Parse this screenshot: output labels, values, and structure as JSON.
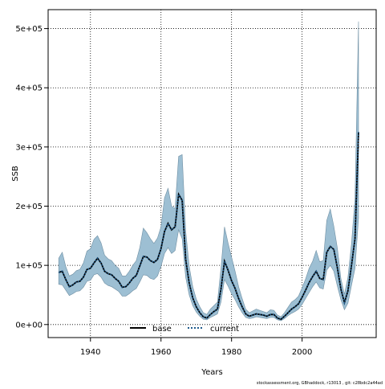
{
  "chart_data": {
    "type": "line",
    "xlabel": "Years",
    "ylabel": "SSB",
    "xlim": [
      1928,
      2021
    ],
    "ylim": [
      -22000,
      532000
    ],
    "x_ticks": [
      1940,
      1960,
      1980,
      2000
    ],
    "x_tick_labels": [
      "1940",
      "1960",
      "1980",
      "2000"
    ],
    "y_ticks": [
      0,
      100000,
      200000,
      300000,
      400000,
      500000
    ],
    "y_tick_labels": [
      "0e+00",
      "1e+05",
      "2e+05",
      "3e+05",
      "4e+05",
      "5e+05"
    ],
    "grid": true,
    "grid_style": "dotted",
    "legend_position": "bottom-center",
    "x": [
      1931,
      1932,
      1933,
      1934,
      1935,
      1936,
      1937,
      1938,
      1939,
      1940,
      1941,
      1942,
      1943,
      1944,
      1945,
      1946,
      1947,
      1948,
      1949,
      1950,
      1951,
      1952,
      1953,
      1954,
      1955,
      1956,
      1957,
      1958,
      1959,
      1960,
      1961,
      1962,
      1963,
      1964,
      1965,
      1966,
      1967,
      1968,
      1969,
      1970,
      1971,
      1972,
      1973,
      1974,
      1975,
      1976,
      1977,
      1978,
      1979,
      1980,
      1981,
      1982,
      1983,
      1984,
      1985,
      1986,
      1987,
      1988,
      1989,
      1990,
      1991,
      1992,
      1993,
      1994,
      1995,
      1996,
      1997,
      1998,
      1999,
      2000,
      2001,
      2002,
      2003,
      2004,
      2005,
      2006,
      2007,
      2008,
      2009,
      2010,
      2011,
      2012,
      2013,
      2014,
      2015,
      2016
    ],
    "series": [
      {
        "name": "base",
        "color": "#000000",
        "line_style": "solid",
        "values": [
          88000,
          90000,
          76000,
          64000,
          67000,
          72000,
          73000,
          80000,
          93000,
          95000,
          104000,
          112000,
          104000,
          90000,
          86000,
          84000,
          78000,
          73000,
          63000,
          64000,
          70000,
          78000,
          83000,
          99000,
          115000,
          114000,
          108000,
          105000,
          110000,
          128000,
          157000,
          171000,
          160000,
          165000,
          220000,
          210000,
          110000,
          70000,
          45000,
          30000,
          20000,
          13000,
          11000,
          17000,
          22000,
          26000,
          60000,
          107000,
          92000,
          74000,
          61000,
          44000,
          30000,
          18000,
          14000,
          16000,
          18000,
          17000,
          16000,
          14000,
          17000,
          17000,
          11000,
          9000,
          14000,
          20000,
          26000,
          30000,
          35000,
          46000,
          58000,
          71000,
          81000,
          90000,
          78000,
          76000,
          122000,
          132000,
          127000,
          96000,
          60000,
          37000,
          57000,
          100000,
          145000,
          325000
        ]
      },
      {
        "name": "current",
        "color": "#1f5a8c",
        "line_style": "dotted",
        "values": [
          88000,
          90000,
          76000,
          64000,
          67000,
          72000,
          73000,
          80000,
          93000,
          95000,
          104000,
          112000,
          104000,
          90000,
          86000,
          84000,
          78000,
          73000,
          63000,
          64000,
          70000,
          78000,
          83000,
          99000,
          115000,
          114000,
          108000,
          105000,
          110000,
          128000,
          157000,
          171000,
          160000,
          165000,
          220000,
          210000,
          110000,
          70000,
          45000,
          30000,
          20000,
          13000,
          11000,
          17000,
          22000,
          26000,
          60000,
          107000,
          92000,
          74000,
          61000,
          44000,
          30000,
          18000,
          14000,
          16000,
          18000,
          17000,
          16000,
          14000,
          17000,
          17000,
          11000,
          9000,
          14000,
          20000,
          26000,
          30000,
          35000,
          46000,
          58000,
          71000,
          81000,
          90000,
          78000,
          76000,
          122000,
          132000,
          127000,
          96000,
          60000,
          37000,
          57000,
          100000,
          145000,
          325000
        ]
      }
    ],
    "band": {
      "color": "#9dbfd3",
      "lower": [
        68000,
        67000,
        58000,
        49000,
        52000,
        56000,
        57000,
        63000,
        73000,
        75000,
        84000,
        86000,
        80000,
        70000,
        66000,
        64000,
        60000,
        56000,
        48000,
        48000,
        52000,
        57000,
        61000,
        72000,
        84000,
        83000,
        78000,
        76000,
        82000,
        98000,
        120000,
        130000,
        120000,
        125000,
        160000,
        145000,
        80000,
        50000,
        32000,
        21000,
        14000,
        9000,
        8000,
        12000,
        15000,
        18000,
        38000,
        76000,
        65000,
        52000,
        42000,
        30000,
        20000,
        12000,
        10000,
        11000,
        13000,
        12000,
        11000,
        10000,
        12000,
        12000,
        8000,
        6500,
        10000,
        15000,
        19000,
        22000,
        26000,
        34000,
        44000,
        54000,
        64000,
        72000,
        62000,
        60000,
        92000,
        100000,
        90000,
        65000,
        42000,
        25000,
        36000,
        66000,
        95000,
        180000
      ],
      "upper": [
        112000,
        122000,
        98000,
        82000,
        85000,
        91000,
        93000,
        104000,
        124000,
        128000,
        144000,
        150000,
        138000,
        117000,
        111000,
        108000,
        100000,
        95000,
        82000,
        82000,
        90000,
        100000,
        108000,
        130000,
        163000,
        155000,
        145000,
        137000,
        146000,
        165000,
        214000,
        230000,
        200000,
        196000,
        284000,
        287000,
        158000,
        98000,
        64000,
        43000,
        30000,
        20000,
        17000,
        26000,
        32000,
        38000,
        95000,
        165000,
        138000,
        114000,
        90000,
        64000,
        44000,
        26000,
        20000,
        23000,
        26000,
        24000,
        22000,
        20000,
        25000,
        24000,
        16000,
        13000,
        20000,
        29000,
        38000,
        42000,
        48000,
        62000,
        77000,
        95000,
        107000,
        125000,
        106000,
        108000,
        176000,
        195000,
        166000,
        129000,
        78000,
        51000,
        80000,
        136000,
        213000,
        512000
      ]
    },
    "footer": "stockassessment.org, GBhaddock, r13013 , git: c28bdc2a44ad"
  }
}
